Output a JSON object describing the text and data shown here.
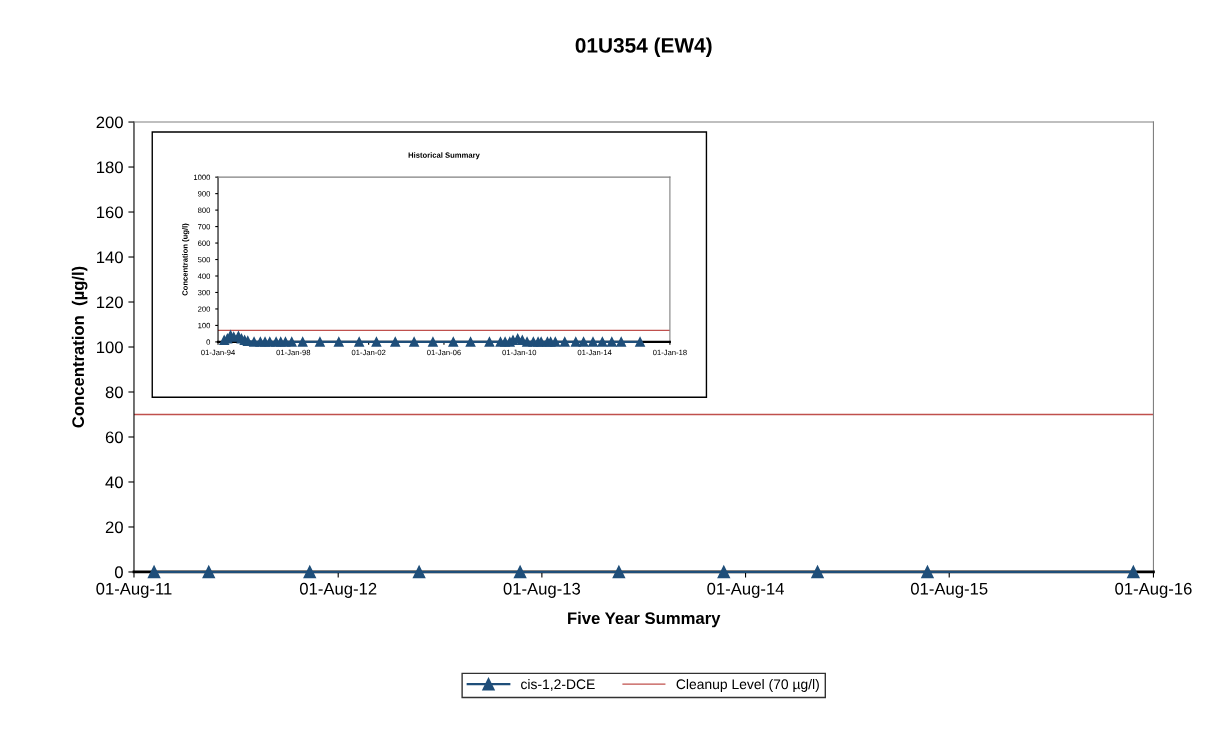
{
  "chart_data": [
    {
      "type": "line",
      "title": "01U354 (EW4)",
      "xlabel": "Five Year Summary",
      "ylabel": "Concentration  (µg/l)",
      "xlim": [
        "2011-08-01",
        "2016-08-01"
      ],
      "xticks": [
        {
          "value": "2011-08-01",
          "label": "01-Aug-11"
        },
        {
          "value": "2012-08-01",
          "label": "01-Aug-12"
        },
        {
          "value": "2013-08-01",
          "label": "01-Aug-13"
        },
        {
          "value": "2014-08-01",
          "label": "01-Aug-14"
        },
        {
          "value": "2015-08-01",
          "label": "01-Aug-15"
        },
        {
          "value": "2016-08-01",
          "label": "01-Aug-16"
        }
      ],
      "ylim": [
        0,
        200
      ],
      "yticks": [
        0,
        20,
        40,
        60,
        80,
        100,
        120,
        140,
        160,
        180,
        200
      ],
      "x": [
        "2011-09-06",
        "2011-12-13",
        "2012-06-11",
        "2012-12-24",
        "2013-06-23",
        "2013-12-17",
        "2014-06-23",
        "2014-12-08",
        "2015-06-23",
        "2016-06-26"
      ],
      "series": [
        {
          "name": "cis-1,2-DCE",
          "color": "#1f4e79",
          "values": [
            0,
            0,
            0,
            0,
            0,
            0,
            0,
            0,
            0,
            0
          ]
        }
      ],
      "ref_lines": [
        {
          "axis": "y",
          "value": 70,
          "label": "Cleanup Level (70 µg/l)",
          "color": "#c0504d"
        }
      ],
      "marker": "triangle",
      "grid": false,
      "legend": "bottom"
    },
    {
      "type": "line",
      "title": "Historical Summary",
      "ylabel": "Concentration (ug/l)",
      "xlim": [
        "1994-01-01",
        "2018-01-01"
      ],
      "xticks": [
        {
          "value": "1994-01-01",
          "label": "01-Jan-94"
        },
        {
          "value": "1998-01-01",
          "label": "01-Jan-98"
        },
        {
          "value": "2002-01-01",
          "label": "01-Jan-02"
        },
        {
          "value": "2006-01-01",
          "label": "01-Jan-06"
        },
        {
          "value": "2010-01-01",
          "label": "01-Jan-10"
        },
        {
          "value": "2014-01-01",
          "label": "01-Jan-14"
        },
        {
          "value": "2018-01-01",
          "label": "01-Jan-18"
        }
      ],
      "ylim": [
        0,
        1000
      ],
      "yticks": [
        0,
        100,
        200,
        300,
        400,
        500,
        600,
        700,
        800,
        900,
        1000
      ],
      "x": [
        "1994-05",
        "1994-07",
        "1994-09",
        "1994-11",
        "1995-02",
        "1995-04",
        "1995-06",
        "1995-08",
        "1995-12",
        "1996-04",
        "1996-07",
        "1996-10",
        "1997-02",
        "1997-05",
        "1997-08",
        "1997-12",
        "1998-07",
        "1999-06",
        "2000-06",
        "2001-07",
        "2002-06",
        "2003-06",
        "2004-06",
        "2005-06",
        "2006-07",
        "2007-06",
        "2008-06",
        "2009-01",
        "2009-04",
        "2009-07",
        "2009-09",
        "2009-12",
        "2010-03",
        "2010-06",
        "2010-10",
        "2011-01",
        "2011-03",
        "2011-07",
        "2011-09",
        "2011-12",
        "2012-06",
        "2013-01",
        "2013-06",
        "2013-12",
        "2014-06",
        "2014-12",
        "2015-06",
        "2016-06"
      ],
      "series": [
        {
          "color": "#1f4e79",
          "values": [
            10,
            20,
            40,
            30,
            35,
            20,
            10,
            5,
            0,
            0,
            0,
            0,
            0,
            0,
            0,
            0,
            0,
            0,
            0,
            0,
            0,
            0,
            0,
            0,
            0,
            0,
            0,
            0,
            0,
            0,
            10,
            20,
            10,
            0,
            0,
            0,
            0,
            0,
            0,
            0,
            0,
            0,
            0,
            0,
            0,
            0,
            0,
            0
          ]
        }
      ],
      "ref_lines": [
        {
          "axis": "y",
          "value": 70,
          "color": "#c0504d"
        }
      ],
      "marker": "triangle",
      "grid": false,
      "legend": false
    }
  ]
}
